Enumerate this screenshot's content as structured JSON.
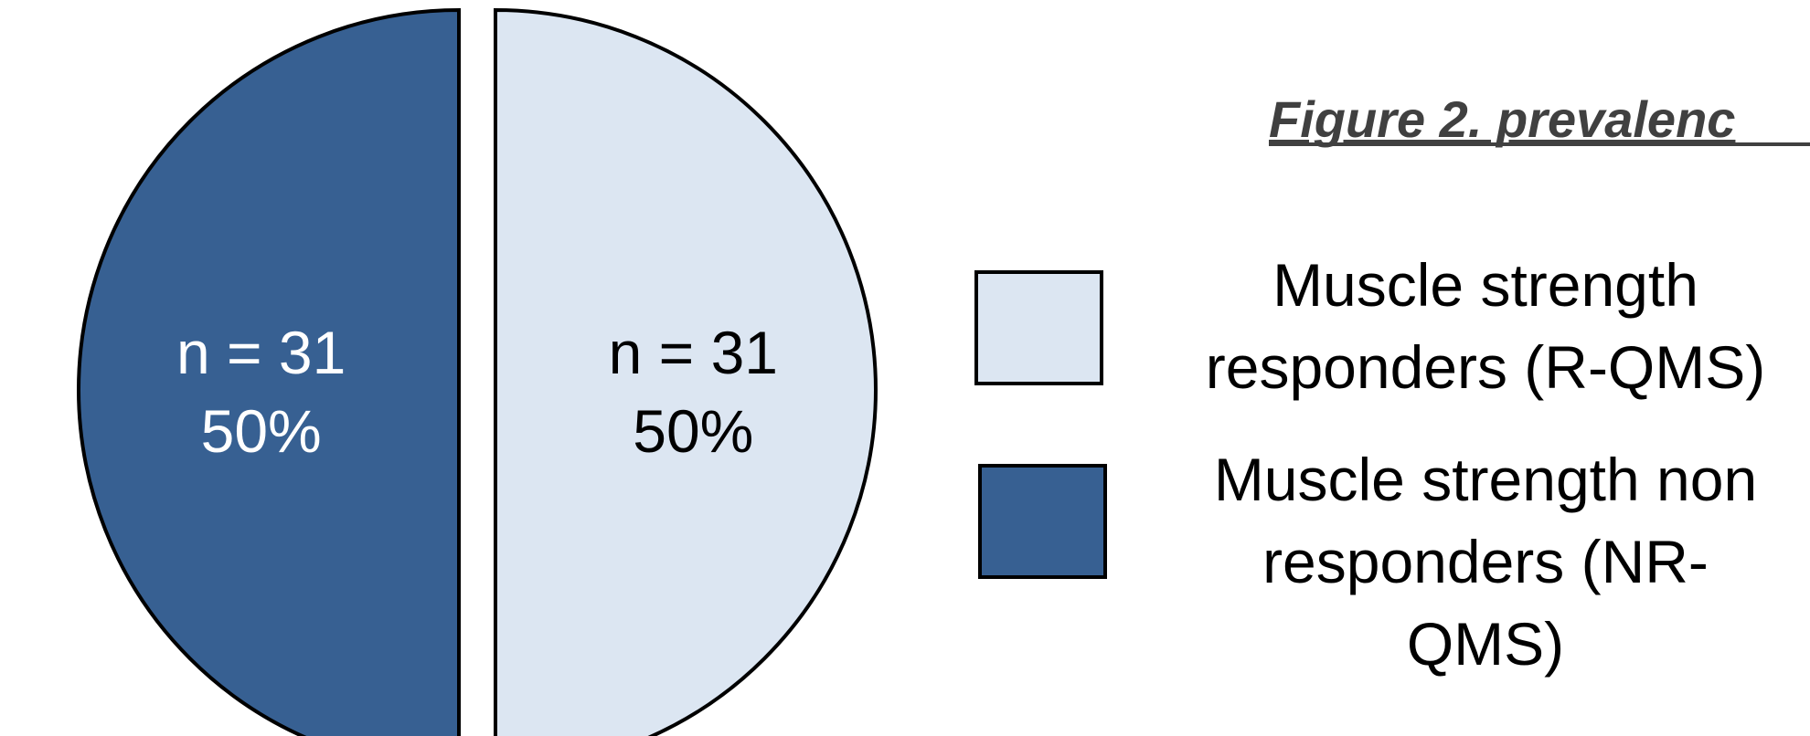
{
  "chart_data": {
    "type": "pie",
    "title": "Figure 2. prevalenc",
    "legend_position": "right",
    "slices": [
      {
        "name": "Muscle strength responders (R-QMS)",
        "legend_lines": [
          "Muscle strength",
          "responders (R-QMS)"
        ],
        "value": 31,
        "percent": 50,
        "label_lines": [
          "n = 31",
          "50%"
        ],
        "color": "#dce6f2"
      },
      {
        "name": "Muscle strength non responders (NR-QMS)",
        "legend_lines": [
          "Muscle strength non",
          "responders (NR-",
          "QMS)"
        ],
        "value": 31,
        "percent": 50,
        "label_lines": [
          "n = 31",
          "50%"
        ],
        "color": "#376092"
      }
    ]
  }
}
